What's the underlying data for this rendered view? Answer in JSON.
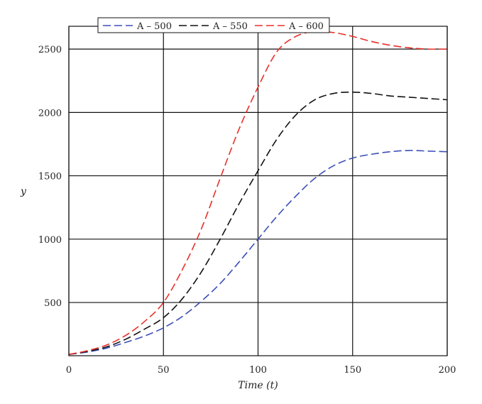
{
  "chart_data": {
    "type": "line",
    "title": "",
    "xlabel": "Time (t)",
    "ylabel": "y",
    "xlim": [
      0,
      200
    ],
    "ylim": [
      80,
      2680
    ],
    "grid": true,
    "legend_position": "top",
    "x_ticks": [
      0,
      50,
      100,
      150,
      200
    ],
    "x_tick_labels": [
      "0",
      "50",
      "100",
      "150",
      "200"
    ],
    "y_ticks": [
      500,
      1000,
      1500,
      2000,
      2500
    ],
    "y_tick_labels": [
      "500",
      "1000",
      "1500",
      "2000",
      "2500"
    ],
    "x": [
      0,
      10,
      20,
      30,
      40,
      50,
      60,
      70,
      80,
      90,
      100,
      110,
      120,
      130,
      140,
      150,
      160,
      170,
      180,
      190,
      200
    ],
    "series": [
      {
        "name": "A – 500",
        "color": "#3b4fb8",
        "values": [
          90,
          110,
          140,
          185,
          235,
          300,
          390,
          510,
          650,
          820,
          1000,
          1180,
          1340,
          1480,
          1580,
          1640,
          1670,
          1690,
          1700,
          1695,
          1690
        ]
      },
      {
        "name": "A – 550",
        "color": "#111111",
        "values": [
          90,
          115,
          150,
          210,
          290,
          380,
          530,
          740,
          1000,
          1280,
          1540,
          1790,
          1980,
          2100,
          2150,
          2160,
          2150,
          2130,
          2120,
          2110,
          2100
        ]
      },
      {
        "name": "A – 600",
        "color": "#e8302a",
        "values": [
          90,
          120,
          165,
          240,
          350,
          500,
          760,
          1080,
          1480,
          1870,
          2200,
          2480,
          2600,
          2640,
          2630,
          2600,
          2560,
          2530,
          2510,
          2500,
          2500
        ]
      }
    ]
  }
}
